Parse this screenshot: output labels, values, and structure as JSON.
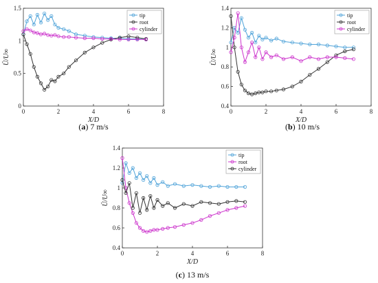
{
  "chart_data": [
    {
      "type": "line",
      "panel_label": "a",
      "caption": "7 m/s",
      "xlabel": "X/D",
      "ylabel": "Ū/U∞",
      "xlim": [
        0,
        8
      ],
      "ylim": [
        0,
        1.5
      ],
      "xticks": [
        0,
        2,
        4,
        6,
        8
      ],
      "yticks": [
        0,
        0.5,
        1,
        1.5
      ],
      "ytick_labels": [
        "0",
        "0.5",
        "1",
        "1.5"
      ],
      "legend_position": "top-right",
      "series": [
        {
          "name": "tip",
          "color": "#4fa3d9",
          "x": [
            0,
            0.2,
            0.4,
            0.6,
            0.8,
            1.0,
            1.2,
            1.4,
            1.6,
            1.8,
            2.0,
            2.3,
            2.6,
            3.0,
            3.5,
            4.0,
            4.5,
            5.0,
            5.5,
            6.0,
            6.5,
            7.0
          ],
          "y": [
            1.1,
            1.3,
            1.38,
            1.25,
            1.4,
            1.28,
            1.42,
            1.32,
            1.38,
            1.25,
            1.2,
            1.18,
            1.15,
            1.1,
            1.08,
            1.06,
            1.05,
            1.04,
            1.04,
            1.03,
            1.03,
            1.02
          ]
        },
        {
          "name": "root",
          "color": "#333333",
          "x": [
            0,
            0.2,
            0.4,
            0.6,
            0.8,
            1.0,
            1.2,
            1.4,
            1.6,
            1.8,
            2.0,
            2.3,
            2.6,
            3.0,
            3.5,
            4.0,
            4.5,
            5.0,
            5.5,
            6.0,
            6.5,
            7.0
          ],
          "y": [
            1.1,
            0.95,
            0.8,
            0.6,
            0.45,
            0.35,
            0.25,
            0.3,
            0.4,
            0.38,
            0.45,
            0.5,
            0.6,
            0.7,
            0.82,
            0.9,
            0.97,
            1.02,
            1.05,
            1.07,
            1.05,
            1.03
          ]
        },
        {
          "name": "cylinder",
          "color": "#cc33cc",
          "x": [
            0,
            0.2,
            0.4,
            0.6,
            0.8,
            1.0,
            1.2,
            1.4,
            1.6,
            1.8,
            2.0,
            2.3,
            2.6,
            3.0,
            3.5,
            4.0,
            4.5,
            5.0,
            5.5,
            6.0,
            6.5,
            7.0
          ],
          "y": [
            1.15,
            1.18,
            1.16,
            1.13,
            1.12,
            1.1,
            1.11,
            1.09,
            1.08,
            1.09,
            1.07,
            1.06,
            1.06,
            1.05,
            1.04,
            1.04,
            1.03,
            1.03,
            1.02,
            1.02,
            1.02,
            1.02
          ]
        }
      ]
    },
    {
      "type": "line",
      "panel_label": "b",
      "caption": "10 m/s",
      "xlabel": "X/D",
      "ylabel": "Ū/U∞",
      "xlim": [
        0,
        8
      ],
      "ylim": [
        0.4,
        1.4
      ],
      "xticks": [
        0,
        2,
        4,
        6,
        8
      ],
      "yticks": [
        0.4,
        0.6,
        0.8,
        1.0,
        1.2,
        1.4
      ],
      "ytick_labels": [
        "0.4",
        "0.6",
        "0.8",
        "1",
        "1.2",
        "1.4"
      ],
      "legend_position": "top-right",
      "series": [
        {
          "name": "tip",
          "color": "#4fa3d9",
          "x": [
            0,
            0.2,
            0.4,
            0.6,
            0.8,
            1.0,
            1.2,
            1.4,
            1.6,
            1.8,
            2.0,
            2.3,
            2.6,
            3.0,
            3.5,
            4.0,
            4.5,
            5.0,
            5.5,
            6.0,
            6.5,
            7.0
          ],
          "y": [
            1.05,
            1.2,
            1.15,
            1.3,
            1.18,
            1.1,
            1.15,
            1.05,
            1.12,
            1.08,
            1.1,
            1.07,
            1.09,
            1.06,
            1.05,
            1.04,
            1.03,
            1.03,
            1.02,
            1.01,
            1.0,
            1.0
          ]
        },
        {
          "name": "root",
          "color": "#333333",
          "x": [
            0,
            0.2,
            0.4,
            0.6,
            0.8,
            1.0,
            1.2,
            1.4,
            1.6,
            1.8,
            2.0,
            2.3,
            2.6,
            3.0,
            3.5,
            4.0,
            4.5,
            5.0,
            5.5,
            6.0,
            6.5,
            7.0
          ],
          "y": [
            1.32,
            1.0,
            0.75,
            0.62,
            0.56,
            0.53,
            0.52,
            0.53,
            0.54,
            0.54,
            0.55,
            0.55,
            0.56,
            0.57,
            0.6,
            0.65,
            0.72,
            0.78,
            0.85,
            0.92,
            0.96,
            0.98
          ]
        },
        {
          "name": "cylinder",
          "color": "#cc33cc",
          "x": [
            0,
            0.2,
            0.4,
            0.6,
            0.8,
            1.0,
            1.2,
            1.4,
            1.6,
            1.8,
            2.0,
            2.3,
            2.6,
            3.0,
            3.5,
            4.0,
            4.5,
            5.0,
            5.5,
            6.0,
            6.5,
            7.0
          ],
          "y": [
            0.95,
            1.1,
            1.35,
            1.0,
            0.85,
            0.95,
            1.05,
            0.9,
            1.0,
            0.88,
            0.95,
            0.9,
            0.92,
            0.88,
            0.9,
            0.86,
            0.9,
            0.88,
            0.9,
            0.9,
            0.89,
            0.88
          ]
        }
      ]
    },
    {
      "type": "line",
      "panel_label": "c",
      "caption": "13 m/s",
      "xlabel": "X/D",
      "ylabel": "Ū/U∞",
      "xlim": [
        0,
        8
      ],
      "ylim": [
        0.4,
        1.4
      ],
      "xticks": [
        0,
        2,
        4,
        6,
        8
      ],
      "yticks": [
        0.4,
        0.6,
        0.8,
        1.0,
        1.2,
        1.4
      ],
      "ytick_labels": [
        "0.4",
        "0.6",
        "0.8",
        "1",
        "1.2",
        "1.4"
      ],
      "legend_position": "top-right",
      "series": [
        {
          "name": "tip",
          "color": "#4fa3d9",
          "x": [
            0,
            0.2,
            0.4,
            0.6,
            0.8,
            1.0,
            1.2,
            1.4,
            1.6,
            1.8,
            2.0,
            2.3,
            2.6,
            3.0,
            3.5,
            4.0,
            4.5,
            5.0,
            5.5,
            6.0,
            6.5,
            7.0
          ],
          "y": [
            1.05,
            1.25,
            1.15,
            1.2,
            1.1,
            1.15,
            1.08,
            1.12,
            1.05,
            1.1,
            1.03,
            1.06,
            1.02,
            1.04,
            1.02,
            1.03,
            1.02,
            1.01,
            1.02,
            1.01,
            1.01,
            1.01
          ]
        },
        {
          "name": "root",
          "color": "#cc33cc",
          "x": [
            0,
            0.2,
            0.4,
            0.6,
            0.8,
            1.0,
            1.2,
            1.4,
            1.6,
            1.8,
            2.0,
            2.3,
            2.6,
            3.0,
            3.5,
            4.0,
            4.5,
            5.0,
            5.5,
            6.0,
            6.5,
            7.0
          ],
          "y": [
            1.3,
            1.0,
            0.85,
            0.75,
            0.65,
            0.6,
            0.57,
            0.56,
            0.57,
            0.58,
            0.58,
            0.59,
            0.6,
            0.61,
            0.63,
            0.65,
            0.68,
            0.72,
            0.75,
            0.78,
            0.8,
            0.82
          ]
        },
        {
          "name": "cylinder",
          "color": "#333333",
          "x": [
            0,
            0.2,
            0.4,
            0.6,
            0.8,
            1.0,
            1.2,
            1.4,
            1.6,
            1.8,
            2.0,
            2.3,
            2.6,
            3.0,
            3.5,
            4.0,
            4.5,
            5.0,
            5.5,
            6.0,
            6.5,
            7.0
          ],
          "y": [
            1.08,
            0.95,
            1.05,
            0.8,
            0.95,
            0.75,
            0.9,
            0.78,
            0.92,
            0.8,
            0.88,
            0.82,
            0.85,
            0.8,
            0.84,
            0.82,
            0.86,
            0.85,
            0.84,
            0.86,
            0.87,
            0.86
          ]
        }
      ]
    }
  ]
}
